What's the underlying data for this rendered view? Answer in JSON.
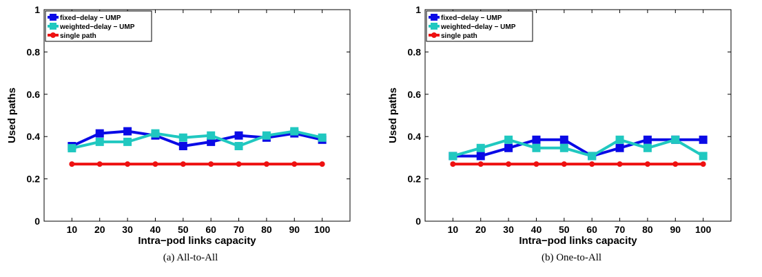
{
  "chart_data": [
    {
      "type": "line",
      "caption": "(a)  All-to-All",
      "xlabel": "Intra−pod links capacity",
      "ylabel": "Used paths",
      "x": [
        10,
        20,
        30,
        40,
        50,
        60,
        70,
        80,
        90,
        100
      ],
      "xlim": [
        0,
        110
      ],
      "ylim": [
        0,
        1
      ],
      "xticks": [
        "10",
        "20",
        "30",
        "40",
        "50",
        "60",
        "70",
        "80",
        "90",
        "100"
      ],
      "yticks": [
        "0",
        "0.2",
        "0.4",
        "0.6",
        "0.8",
        "1"
      ],
      "legend_position": "top-left",
      "grid": false,
      "series": [
        {
          "name": "fixed−delay − UMP",
          "color": "#0a0ae6",
          "marker": "square",
          "values": [
            0.355,
            0.415,
            0.425,
            0.405,
            0.355,
            0.375,
            0.405,
            0.395,
            0.415,
            0.385
          ]
        },
        {
          "name": "weighted−delay − UMP",
          "color": "#20c8c0",
          "marker": "square",
          "values": [
            0.345,
            0.375,
            0.375,
            0.415,
            0.395,
            0.405,
            0.355,
            0.405,
            0.425,
            0.395
          ]
        },
        {
          "name": "single path",
          "color": "#ee1111",
          "marker": "circle",
          "values": [
            0.27,
            0.27,
            0.27,
            0.27,
            0.27,
            0.27,
            0.27,
            0.27,
            0.27,
            0.27
          ]
        }
      ]
    },
    {
      "type": "line",
      "caption": "(b)  One-to-All",
      "xlabel": "Intra−pod links capacity",
      "ylabel": "Used paths",
      "x": [
        10,
        20,
        30,
        40,
        50,
        60,
        70,
        80,
        90,
        100
      ],
      "xlim": [
        0,
        110
      ],
      "ylim": [
        0,
        1
      ],
      "xticks": [
        "10",
        "20",
        "30",
        "40",
        "50",
        "60",
        "70",
        "80",
        "90",
        "100"
      ],
      "yticks": [
        "0",
        "0.2",
        "0.4",
        "0.6",
        "0.8",
        "1"
      ],
      "legend_position": "top-left",
      "grid": false,
      "series": [
        {
          "name": "fixed−delay − UMP",
          "color": "#0a0ae6",
          "marker": "square",
          "values": [
            0.308,
            0.308,
            0.346,
            0.385,
            0.385,
            0.308,
            0.346,
            0.385,
            0.385,
            0.385
          ]
        },
        {
          "name": "weighted−delay − UMP",
          "color": "#20c8c0",
          "marker": "square",
          "values": [
            0.308,
            0.346,
            0.385,
            0.346,
            0.346,
            0.308,
            0.385,
            0.346,
            0.385,
            0.308
          ]
        },
        {
          "name": "single path",
          "color": "#ee1111",
          "marker": "circle",
          "values": [
            0.27,
            0.27,
            0.27,
            0.27,
            0.27,
            0.27,
            0.27,
            0.27,
            0.27,
            0.27
          ]
        }
      ]
    }
  ]
}
